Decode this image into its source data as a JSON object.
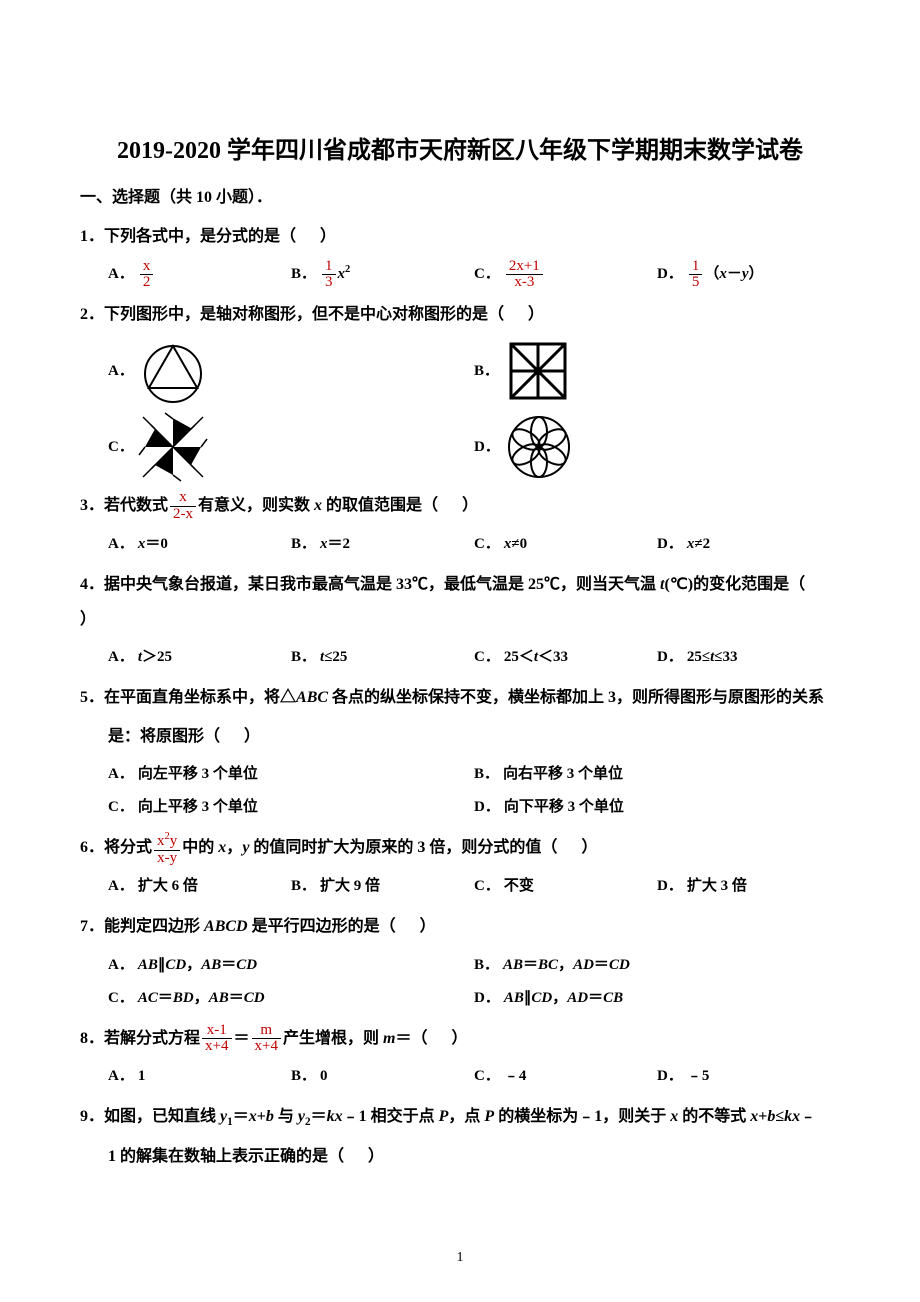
{
  "title": "2019-2020 学年四川省成都市天府新区八年级下学期期末数学试卷",
  "section_header": "一、选择题（共 10 小题）．",
  "page_number": "1",
  "colors": {
    "text": "#000000",
    "accent_frac": "#c00000",
    "background": "#ffffff"
  },
  "typography": {
    "title_fontsize_pt": 18,
    "body_fontsize_pt": 12,
    "font_family": "SimSun"
  },
  "questions": [
    {
      "num": "1．",
      "text_prefix": "下列各式中，是分式的是（",
      "text_suffix": "）",
      "layout": "4col",
      "options": [
        {
          "label": "A．",
          "kind": "frac",
          "num": "x",
          "den": "2"
        },
        {
          "label": "B．",
          "kind": "frac_expr",
          "num": "1",
          "den": "3",
          "tail_html": "<span class='var'>x</span><span class='sup'>2</span>"
        },
        {
          "label": "C．",
          "kind": "frac",
          "num": "2x+1",
          "den": "x-3"
        },
        {
          "label": "D．",
          "kind": "frac_expr",
          "num": "1",
          "den": "5",
          "tail_html": "（<span class='var'>x</span>－<span class='var'>y</span>）"
        }
      ]
    },
    {
      "num": "2．",
      "text_prefix": "下列图形中，是轴对称图形，但不是中心对称图形的是（",
      "text_suffix": "）",
      "layout": "2col-svg",
      "options": [
        {
          "label": "A．",
          "kind": "svg",
          "svg": "circle_triangle"
        },
        {
          "label": "B．",
          "kind": "svg",
          "svg": "square_x"
        },
        {
          "label": "C．",
          "kind": "svg",
          "svg": "pinwheel"
        },
        {
          "label": "D．",
          "kind": "svg",
          "svg": "flower"
        }
      ]
    },
    {
      "num": "3．",
      "text_html": "若代数式<span class='frac' style='color:#c00000'><span class='num'>x</span><span class='den'>2-x</span></span>有意义，则实数 <span class='var'>x</span> 的取值范围是（<span class='gap'></span>）",
      "layout": "4col",
      "options": [
        {
          "label": "A．",
          "kind": "text_html",
          "html": "<span class='var'>x</span>＝0"
        },
        {
          "label": "B．",
          "kind": "text_html",
          "html": "<span class='var'>x</span>＝2"
        },
        {
          "label": "C．",
          "kind": "text_html",
          "html": "<span class='var'>x</span>≠0"
        },
        {
          "label": "D．",
          "kind": "text_html",
          "html": "<span class='var'>x</span>≠2"
        }
      ]
    },
    {
      "num": "4．",
      "text_html": "据中央气象台报道，某日我市最高气温是 33℃，最低气温是 25℃，则当天气温 <span class='var'>t</span>(℃)的变化范围是（<span class='gap'></span>）",
      "layout": "4col",
      "options": [
        {
          "label": "A．",
          "kind": "text_html",
          "html": "<span class='var'>t</span>＞25"
        },
        {
          "label": "B．",
          "kind": "text_html",
          "html": "<span class='var'>t</span>≤25"
        },
        {
          "label": "C．",
          "kind": "text_html",
          "html": "25＜<span class='var'>t</span>＜33"
        },
        {
          "label": "D．",
          "kind": "text_html",
          "html": "25≤<span class='var'>t</span>≤33"
        }
      ]
    },
    {
      "num": "5．",
      "text_html": "在平面直角坐标系中，将△<span class='var'>ABC</span> 各点的纵坐标保持不变，横坐标都加上 3，则所得图形与原图形的关系",
      "cont_html": "是：将原图形（<span class='gap'></span>）",
      "layout": "2col",
      "options": [
        {
          "label": "A．",
          "kind": "text",
          "text": "向左平移 3 个单位"
        },
        {
          "label": "B．",
          "kind": "text",
          "text": "向右平移 3 个单位"
        },
        {
          "label": "C．",
          "kind": "text",
          "text": "向上平移 3 个单位"
        },
        {
          "label": "D．",
          "kind": "text",
          "text": "向下平移 3 个单位"
        }
      ]
    },
    {
      "num": "6．",
      "text_html": "将分式<span class='frac' style='color:#c00000'><span class='num'>x<span class=\"sup\">2</span>y</span><span class='den'>x-y</span></span>中的 <span class='var'>x</span>，<span class='var'>y</span> 的值同时扩大为原来的 3 倍，则分式的值（<span class='gap'></span>）",
      "layout": "4col",
      "options": [
        {
          "label": "A．",
          "kind": "text",
          "text": "扩大 6 倍"
        },
        {
          "label": "B．",
          "kind": "text",
          "text": "扩大 9 倍"
        },
        {
          "label": "C．",
          "kind": "text",
          "text": "不变"
        },
        {
          "label": "D．",
          "kind": "text",
          "text": "扩大 3 倍"
        }
      ]
    },
    {
      "num": "7．",
      "text_html": "能判定四边形 <span class='var'>ABCD</span> 是平行四边形的是（<span class='gap'></span>）",
      "layout": "2col",
      "options": [
        {
          "label": "A．",
          "kind": "text_html",
          "html": "<span class='var'>AB</span>∥<span class='var'>CD</span>，<span class='var'>AB</span>＝<span class='var'>CD</span>"
        },
        {
          "label": "B．",
          "kind": "text_html",
          "html": "<span class='var'>AB</span>＝<span class='var'>BC</span>，<span class='var'>AD</span>＝<span class='var'>CD</span>"
        },
        {
          "label": "C．",
          "kind": "text_html",
          "html": "<span class='var'>AC</span>＝<span class='var'>BD</span>，<span class='var'>AB</span>＝<span class='var'>CD</span>"
        },
        {
          "label": "D．",
          "kind": "text_html",
          "html": "<span class='var'>AB</span>∥<span class='var'>CD</span>，<span class='var'>AD</span>＝<span class='var'>CB</span>"
        }
      ]
    },
    {
      "num": "8．",
      "text_html": "若解分式方程<span class='frac' style='color:#c00000'><span class='num'>x-1</span><span class='den'>x+4</span></span>＝<span class='frac' style='color:#c00000'><span class='num'>m</span><span class='den'>x+4</span></span>产生增根，则 <span class='var'>m</span>＝（<span class='gap'></span>）",
      "layout": "4col",
      "options": [
        {
          "label": "A．",
          "kind": "text",
          "text": "1"
        },
        {
          "label": "B．",
          "kind": "text",
          "text": "0"
        },
        {
          "label": "C．",
          "kind": "text",
          "text": "﹣4"
        },
        {
          "label": "D．",
          "kind": "text",
          "text": "﹣5"
        }
      ]
    },
    {
      "num": "9．",
      "text_html": "如图，已知直线 <span class='var'>y</span><span class='sub'>1</span>＝<span class='var'>x</span>+<span class='var'>b</span> 与 <span class='var'>y</span><span class='sub'>2</span>＝<span class='var'>kx</span>﹣1 相交于点 <span class='var'>P</span>，点 <span class='var'>P</span> 的横坐标为﹣1，则关于 <span class='var'>x</span> 的不等式 <span class='var'>x</span>+<span class='var'>b</span>≤<span class='var'>kx</span>﹣",
      "cont_html": "1 的解集在数轴上表示正确的是（<span class='gap'></span>）",
      "layout": "none",
      "options": []
    }
  ]
}
